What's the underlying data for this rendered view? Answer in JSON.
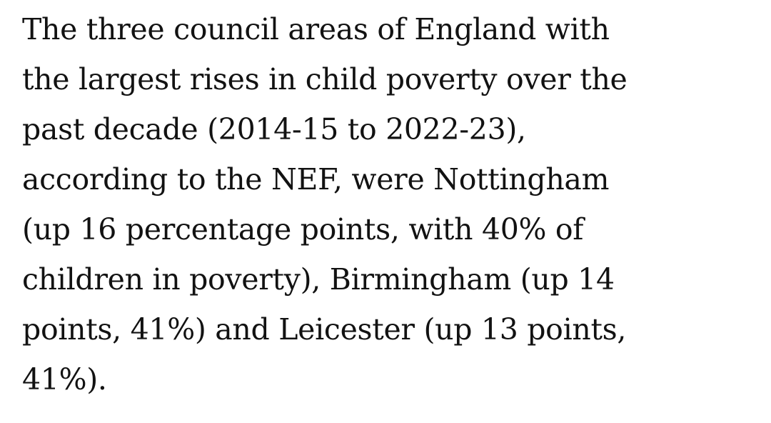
{
  "paragraph": {
    "lines": [
      "The three council areas of England with",
      "the largest rises in child poverty over the",
      "past decade (2014-15 to 2022-23),",
      "according to the NEF, were Nottingham",
      "(up 16 percentage points, with 40% of",
      "children in poverty), Birmingham (up 14",
      "points, 41%) and Leicester (up 13 points,",
      "41%)."
    ]
  }
}
